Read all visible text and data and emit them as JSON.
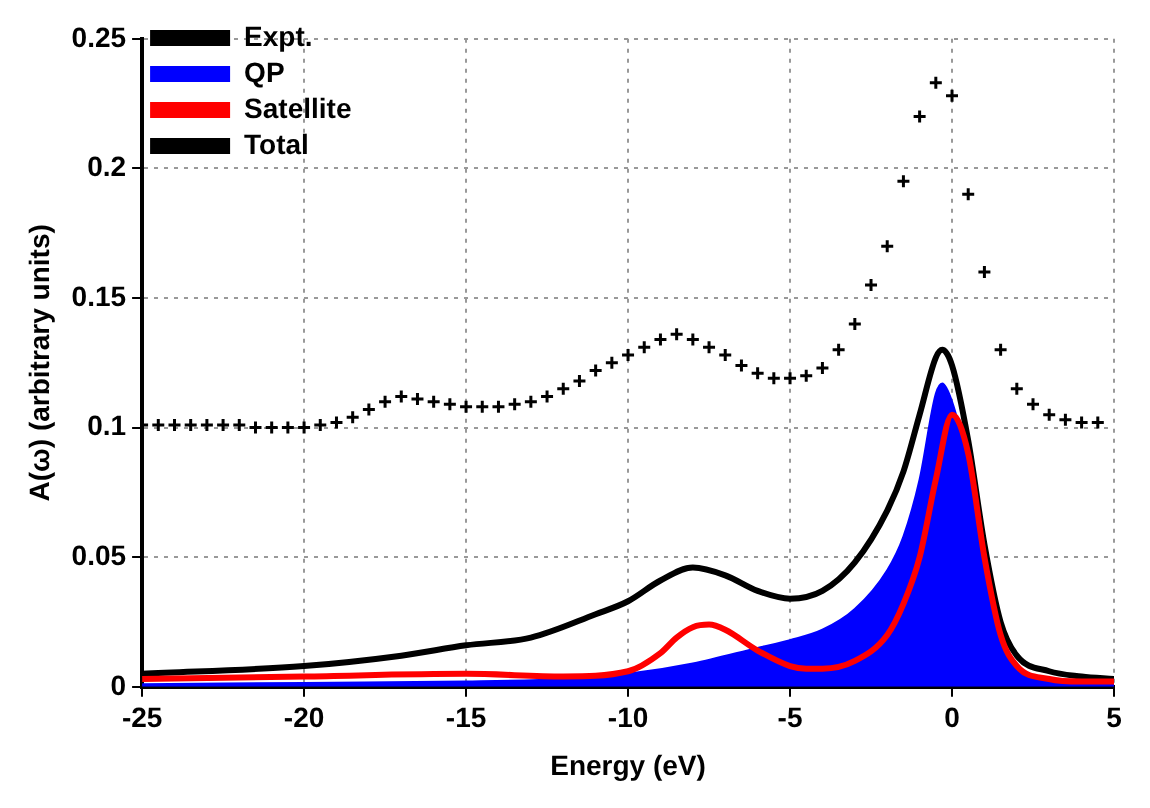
{
  "chart_data": {
    "type": "line",
    "xlabel": "Energy (eV)",
    "ylabel": "A(ω) (arbitrary units)",
    "xlim": [
      -25,
      5
    ],
    "xticks": [
      -25,
      -20,
      -15,
      -10,
      -5,
      0,
      5
    ],
    "ylim": [
      0,
      0.25
    ],
    "yticks": [
      0,
      0.05,
      0.1,
      0.15,
      0.2,
      0.25
    ],
    "grid": true,
    "legend": "top left",
    "series": [
      {
        "name": "Expt.",
        "type": "scatter",
        "marker": "cross",
        "color": "#000000",
        "x": [
          -25,
          -24.5,
          -24,
          -23.5,
          -23,
          -22.5,
          -22,
          -21.5,
          -21,
          -20.5,
          -20,
          -19.5,
          -19,
          -18.5,
          -18,
          -17.5,
          -17,
          -16.5,
          -16,
          -15.5,
          -15,
          -14.5,
          -14,
          -13.5,
          -13,
          -12.5,
          -12,
          -11.5,
          -11,
          -10.5,
          -10,
          -9.5,
          -9,
          -8.5,
          -8,
          -7.5,
          -7,
          -6.5,
          -6,
          -5.5,
          -5,
          -4.5,
          -4,
          -3.5,
          -3,
          -2.5,
          -2,
          -1.5,
          -1,
          -0.5,
          0,
          0.5,
          1,
          1.5,
          2,
          2.5,
          3,
          3.5,
          4,
          4.5
        ],
        "values": [
          0.101,
          0.101,
          0.101,
          0.101,
          0.101,
          0.101,
          0.101,
          0.1,
          0.1,
          0.1,
          0.1,
          0.101,
          0.102,
          0.104,
          0.107,
          0.11,
          0.112,
          0.111,
          0.11,
          0.109,
          0.108,
          0.108,
          0.108,
          0.109,
          0.11,
          0.112,
          0.115,
          0.118,
          0.122,
          0.125,
          0.128,
          0.131,
          0.134,
          0.136,
          0.134,
          0.131,
          0.128,
          0.124,
          0.121,
          0.119,
          0.119,
          0.12,
          0.123,
          0.13,
          0.14,
          0.155,
          0.17,
          0.195,
          0.22,
          0.233,
          0.228,
          0.19,
          0.16,
          0.13,
          0.115,
          0.109,
          0.105,
          0.103,
          0.102,
          0.102
        ]
      },
      {
        "name": "QP",
        "type": "area",
        "color": "#0000ff",
        "x": [
          -25,
          -20,
          -15,
          -12,
          -10,
          -8,
          -6,
          -5,
          -4,
          -3,
          -2,
          -1.5,
          -1,
          -0.5,
          -0.3,
          0,
          0.5,
          1,
          1.5,
          2,
          3,
          4,
          5
        ],
        "values": [
          0.001,
          0.0015,
          0.002,
          0.003,
          0.005,
          0.009,
          0.015,
          0.018,
          0.022,
          0.03,
          0.045,
          0.058,
          0.08,
          0.113,
          0.117,
          0.11,
          0.085,
          0.05,
          0.02,
          0.008,
          0.003,
          0.002,
          0.001
        ]
      },
      {
        "name": "Satellite",
        "type": "line",
        "color": "#ff0000",
        "x": [
          -25,
          -20,
          -15,
          -12,
          -10,
          -9,
          -8.5,
          -8,
          -7.5,
          -7,
          -6,
          -5,
          -4.5,
          -4,
          -3,
          -2,
          -1.5,
          -1,
          -0.5,
          0,
          0.5,
          1,
          1.5,
          2,
          3,
          4,
          5
        ],
        "values": [
          0.003,
          0.004,
          0.005,
          0.004,
          0.006,
          0.013,
          0.019,
          0.023,
          0.024,
          0.022,
          0.014,
          0.008,
          0.007,
          0.007,
          0.01,
          0.02,
          0.032,
          0.05,
          0.08,
          0.105,
          0.09,
          0.05,
          0.02,
          0.008,
          0.003,
          0.002,
          0.002
        ]
      },
      {
        "name": "Total",
        "type": "line",
        "color": "#000000",
        "x": [
          -25,
          -20,
          -17,
          -15,
          -13,
          -11,
          -10,
          -9,
          -8,
          -7,
          -6,
          -5,
          -4,
          -3,
          -2,
          -1.5,
          -1,
          -0.5,
          -0.3,
          0,
          0.5,
          1,
          1.5,
          2,
          3,
          4,
          5
        ],
        "values": [
          0.005,
          0.008,
          0.012,
          0.016,
          0.019,
          0.028,
          0.033,
          0.041,
          0.046,
          0.043,
          0.037,
          0.034,
          0.037,
          0.048,
          0.068,
          0.083,
          0.105,
          0.127,
          0.13,
          0.124,
          0.095,
          0.055,
          0.025,
          0.012,
          0.006,
          0.004,
          0.003
        ]
      }
    ]
  }
}
